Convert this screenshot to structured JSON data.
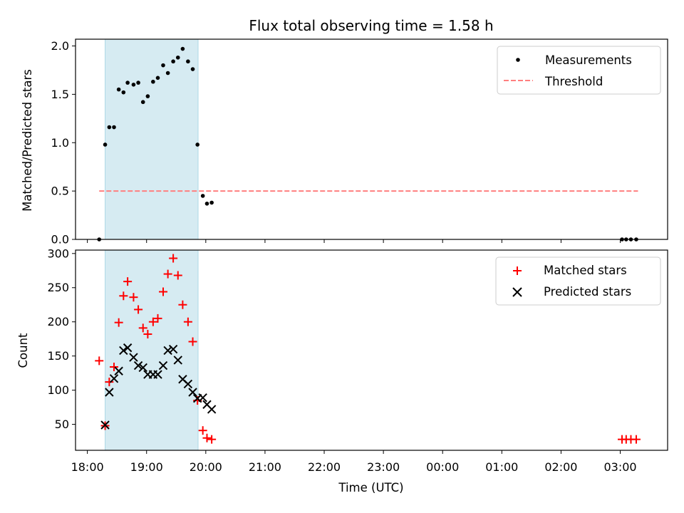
{
  "chart_data": [
    {
      "type": "scatter",
      "title": "Flux total observing time = 1.58 h",
      "xlabel": "",
      "ylabel": "Matched/Predicted stars",
      "xlim_hours": [
        17.8,
        27.8
      ],
      "ylim": [
        0,
        2.07
      ],
      "yticks": [
        0,
        0.5,
        1.0,
        1.5,
        2.0
      ],
      "ytick_labels": [
        "0.0",
        "0.5",
        "1.0",
        "1.5",
        "2.0"
      ],
      "legend": [
        "Measurements",
        "Threshold"
      ],
      "legend_loc": "upper right",
      "span_hours": [
        18.3,
        19.87
      ],
      "threshold": {
        "y": 0.5,
        "x_range_hours": [
          18.2,
          27.3
        ]
      },
      "series": [
        {
          "name": "Measurements",
          "x_hours": [
            18.2,
            18.3,
            18.37,
            18.45,
            18.53,
            18.61,
            18.68,
            18.78,
            18.86,
            18.94,
            19.02,
            19.11,
            19.19,
            19.28,
            19.36,
            19.45,
            19.53,
            19.61,
            19.7,
            19.78,
            19.86,
            19.95,
            20.02,
            20.1,
            27.03,
            27.1,
            27.18,
            27.27
          ],
          "y": [
            0.0,
            0.98,
            1.16,
            1.16,
            1.55,
            1.52,
            1.62,
            1.6,
            1.62,
            1.42,
            1.48,
            1.63,
            1.67,
            1.8,
            1.72,
            1.84,
            1.88,
            1.97,
            1.84,
            1.76,
            0.98,
            0.45,
            0.37,
            0.38,
            0.0,
            0.0,
            0.0,
            0.0
          ]
        }
      ]
    },
    {
      "type": "scatter",
      "title": "",
      "xlabel": "Time (UTC)",
      "ylabel": "Count",
      "xlim_hours": [
        17.8,
        27.8
      ],
      "ylim": [
        12,
        305
      ],
      "yticks": [
        50,
        100,
        150,
        200,
        250,
        300
      ],
      "ytick_labels": [
        "50",
        "100",
        "150",
        "200",
        "250",
        "300"
      ],
      "xticks_hours": [
        18,
        19,
        20,
        21,
        22,
        23,
        24,
        25,
        26,
        27
      ],
      "xtick_labels": [
        "18:00",
        "19:00",
        "20:00",
        "21:00",
        "22:00",
        "23:00",
        "00:00",
        "01:00",
        "02:00",
        "03:00"
      ],
      "legend": [
        "Matched stars",
        "Predicted stars"
      ],
      "legend_loc": "upper right",
      "span_hours": [
        18.3,
        19.87
      ],
      "series": [
        {
          "name": "Matched stars",
          "marker": "+",
          "color": "#ff0000",
          "x_hours": [
            18.2,
            18.3,
            18.37,
            18.45,
            18.53,
            18.61,
            18.68,
            18.78,
            18.86,
            18.94,
            19.02,
            19.11,
            19.19,
            19.28,
            19.36,
            19.45,
            19.53,
            19.61,
            19.7,
            19.78,
            19.86,
            19.95,
            20.02,
            20.1,
            27.03,
            27.1,
            27.18,
            27.27
          ],
          "values": [
            143,
            48,
            112,
            134,
            199,
            238,
            259,
            236,
            218,
            191,
            182,
            200,
            205,
            244,
            270,
            293,
            268,
            225,
            200,
            171,
            85,
            41,
            30,
            28,
            28,
            28,
            28,
            28
          ]
        },
        {
          "name": "Predicted stars",
          "marker": "x",
          "color": "#000000",
          "x_hours": [
            18.3,
            18.37,
            18.45,
            18.53,
            18.61,
            18.68,
            18.78,
            18.86,
            18.94,
            19.02,
            19.11,
            19.19,
            19.28,
            19.36,
            19.45,
            19.53,
            19.61,
            19.7,
            19.78,
            19.86,
            19.95,
            20.02,
            20.1
          ],
          "values": [
            49,
            97,
            117,
            128,
            158,
            162,
            148,
            136,
            133,
            123,
            123,
            123,
            136,
            158,
            160,
            144,
            116,
            109,
            97,
            88,
            89,
            79,
            72
          ]
        }
      ]
    }
  ],
  "colors": {
    "span": "#add8e6",
    "threshold": "#ff7f7f",
    "matched": "#ff0000",
    "predicted": "#000000",
    "measurement": "#000000"
  }
}
